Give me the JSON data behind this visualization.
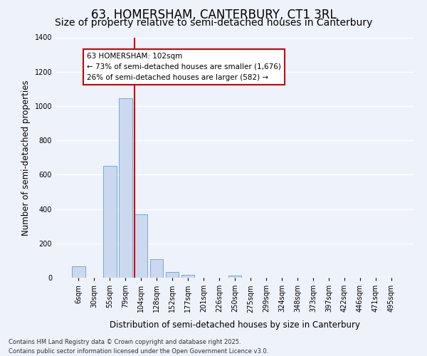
{
  "title": "63, HOMERSHAM, CANTERBURY, CT1 3RL",
  "subtitle": "Size of property relative to semi-detached houses in Canterbury",
  "xlabel": "Distribution of semi-detached houses by size in Canterbury",
  "ylabel": "Number of semi-detached properties",
  "bar_labels": [
    "6sqm",
    "30sqm",
    "55sqm",
    "79sqm",
    "104sqm",
    "128sqm",
    "152sqm",
    "177sqm",
    "201sqm",
    "226sqm",
    "250sqm",
    "275sqm",
    "299sqm",
    "324sqm",
    "348sqm",
    "373sqm",
    "397sqm",
    "422sqm",
    "446sqm",
    "471sqm",
    "495sqm"
  ],
  "bar_values": [
    65,
    0,
    650,
    1047,
    370,
    107,
    35,
    15,
    0,
    0,
    13,
    0,
    0,
    0,
    0,
    0,
    0,
    0,
    0,
    0,
    0
  ],
  "bar_color": "#cad9f0",
  "bar_edge_color": "#7ba7d0",
  "vline_color": "#cc0000",
  "vline_index": 4,
  "annotation_text": "63 HOMERSHAM: 102sqm\n← 73% of semi-detached houses are smaller (1,676)\n26% of semi-detached houses are larger (582) →",
  "annotation_box_facecolor": "#ffffff",
  "annotation_box_edgecolor": "#cc0000",
  "ylim": [
    0,
    1400
  ],
  "yticks": [
    0,
    200,
    400,
    600,
    800,
    1000,
    1200,
    1400
  ],
  "footer_text": "Contains HM Land Registry data © Crown copyright and database right 2025.\nContains public sector information licensed under the Open Government Licence v3.0.",
  "background_color": "#eef2fb",
  "grid_color": "#ffffff",
  "title_fontsize": 12,
  "subtitle_fontsize": 10,
  "axis_label_fontsize": 8.5,
  "tick_fontsize": 7,
  "annotation_fontsize": 7.5,
  "footer_fontsize": 6
}
